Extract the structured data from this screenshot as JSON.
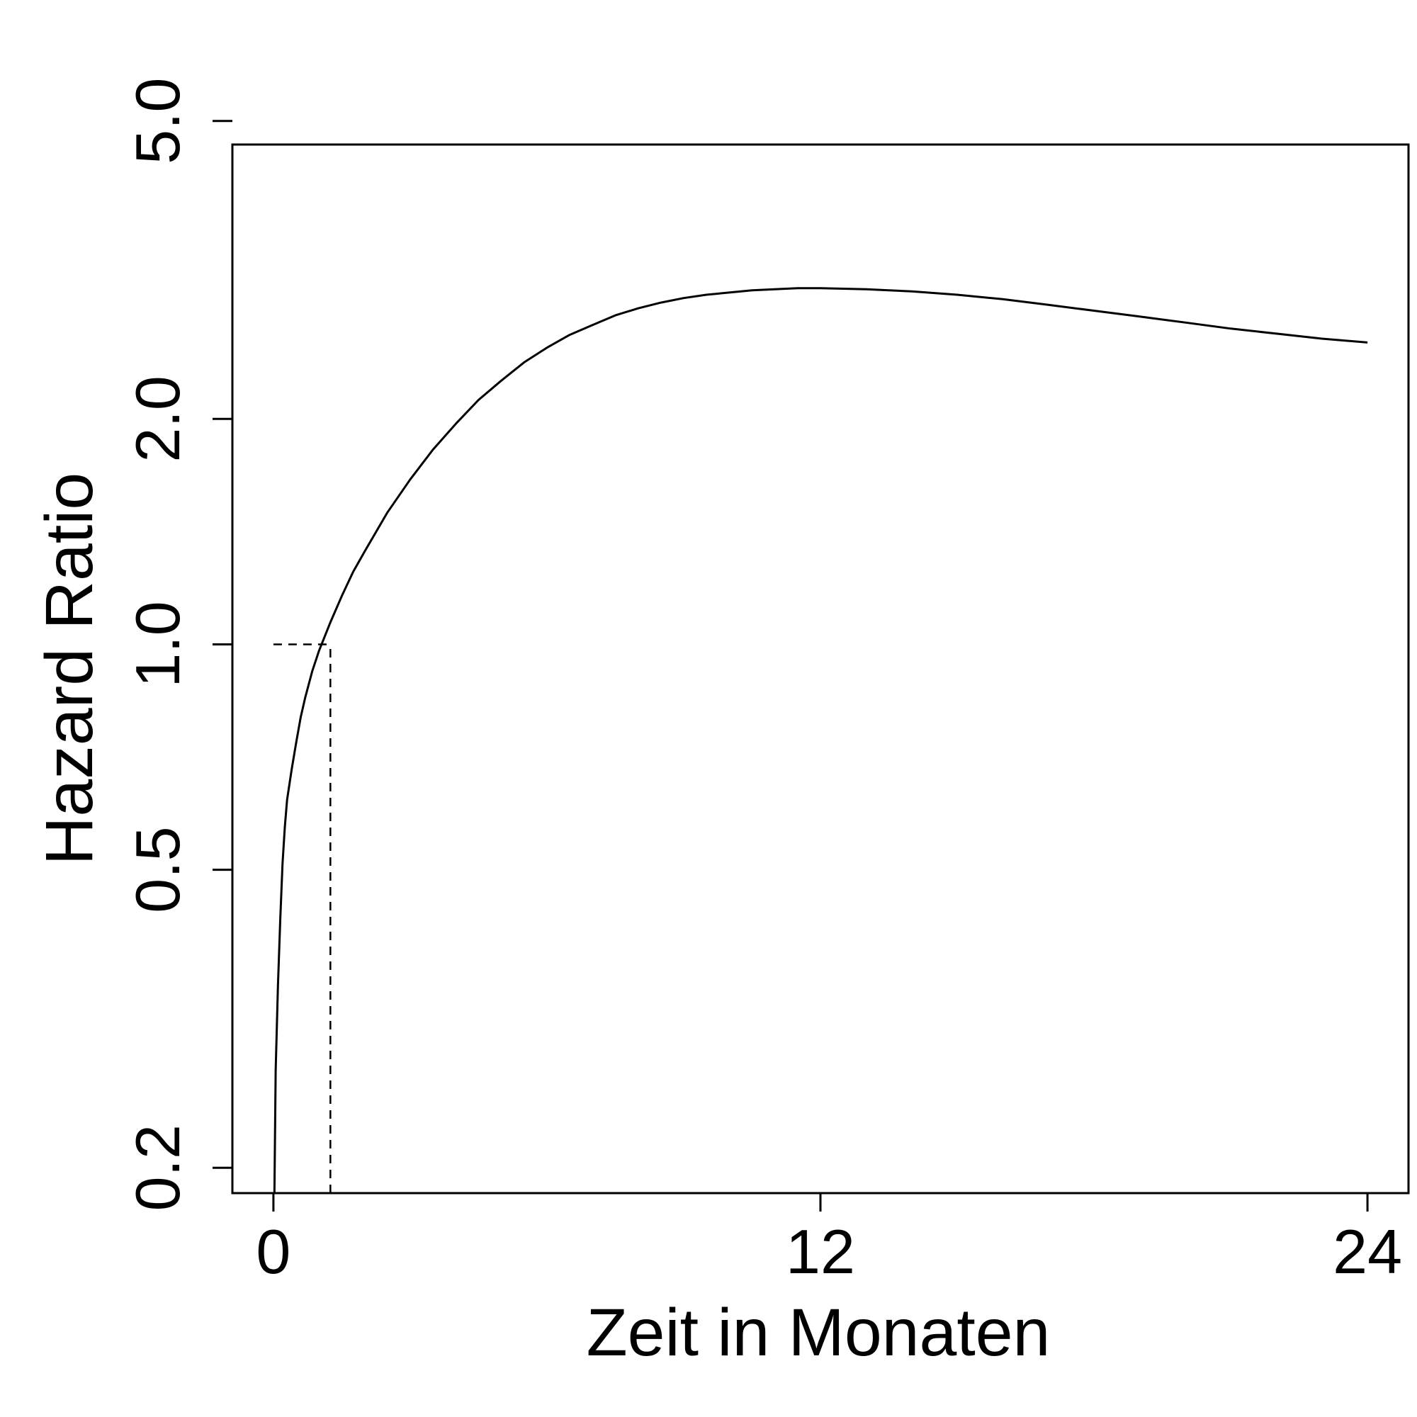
{
  "chart_data": {
    "type": "line",
    "title": "",
    "xlabel": "Zeit in Monaten",
    "ylabel": "Hazard Ratio",
    "x_ticks": [
      0,
      12,
      24
    ],
    "x_tick_labels": [
      "0",
      "12",
      "24"
    ],
    "y_scale": "log",
    "y_ticks": [
      0.2,
      0.5,
      1.0,
      2.0,
      5.0
    ],
    "y_tick_labels": [
      "0.2",
      "0.5",
      "1.0",
      "2.0",
      "5.0"
    ],
    "xlim": [
      -0.9,
      24.9
    ],
    "ylim": [
      0.185,
      4.65
    ],
    "grid": false,
    "legend": "none",
    "series": [
      {
        "color": "#000000",
        "x": [
          0.02,
          0.05,
          0.1,
          0.15,
          0.2,
          0.25,
          0.3,
          0.4,
          0.5,
          0.6,
          0.7,
          0.85,
          1.0,
          1.25,
          1.5,
          1.75,
          2.0,
          2.5,
          3.0,
          3.5,
          4.0,
          4.5,
          5.0,
          5.5,
          6.0,
          6.5,
          7.0,
          7.5,
          8.0,
          8.5,
          9.0,
          9.5,
          10.0,
          10.5,
          11.0,
          11.5,
          12.0,
          13.0,
          14.0,
          15.0,
          16.0,
          17.0,
          18.0,
          19.0,
          20.0,
          21.0,
          22.0,
          23.0,
          24.0
        ],
        "y": [
          0.18,
          0.27,
          0.35,
          0.43,
          0.51,
          0.57,
          0.62,
          0.68,
          0.74,
          0.8,
          0.85,
          0.92,
          0.98,
          1.07,
          1.16,
          1.25,
          1.33,
          1.5,
          1.66,
          1.82,
          1.97,
          2.12,
          2.25,
          2.38,
          2.49,
          2.59,
          2.67,
          2.75,
          2.81,
          2.86,
          2.9,
          2.93,
          2.95,
          2.97,
          2.98,
          2.99,
          2.99,
          2.98,
          2.96,
          2.93,
          2.89,
          2.84,
          2.79,
          2.74,
          2.69,
          2.64,
          2.6,
          2.56,
          2.53
        ]
      }
    ],
    "reference_lines": [
      {
        "style": "dashed",
        "orientation": "horizontal",
        "y": 1.0,
        "x_from": 0,
        "x_to": 1.25
      },
      {
        "style": "dashed",
        "orientation": "vertical",
        "x": 1.25,
        "y_from": 0.185,
        "y_to": 1.0
      }
    ]
  }
}
